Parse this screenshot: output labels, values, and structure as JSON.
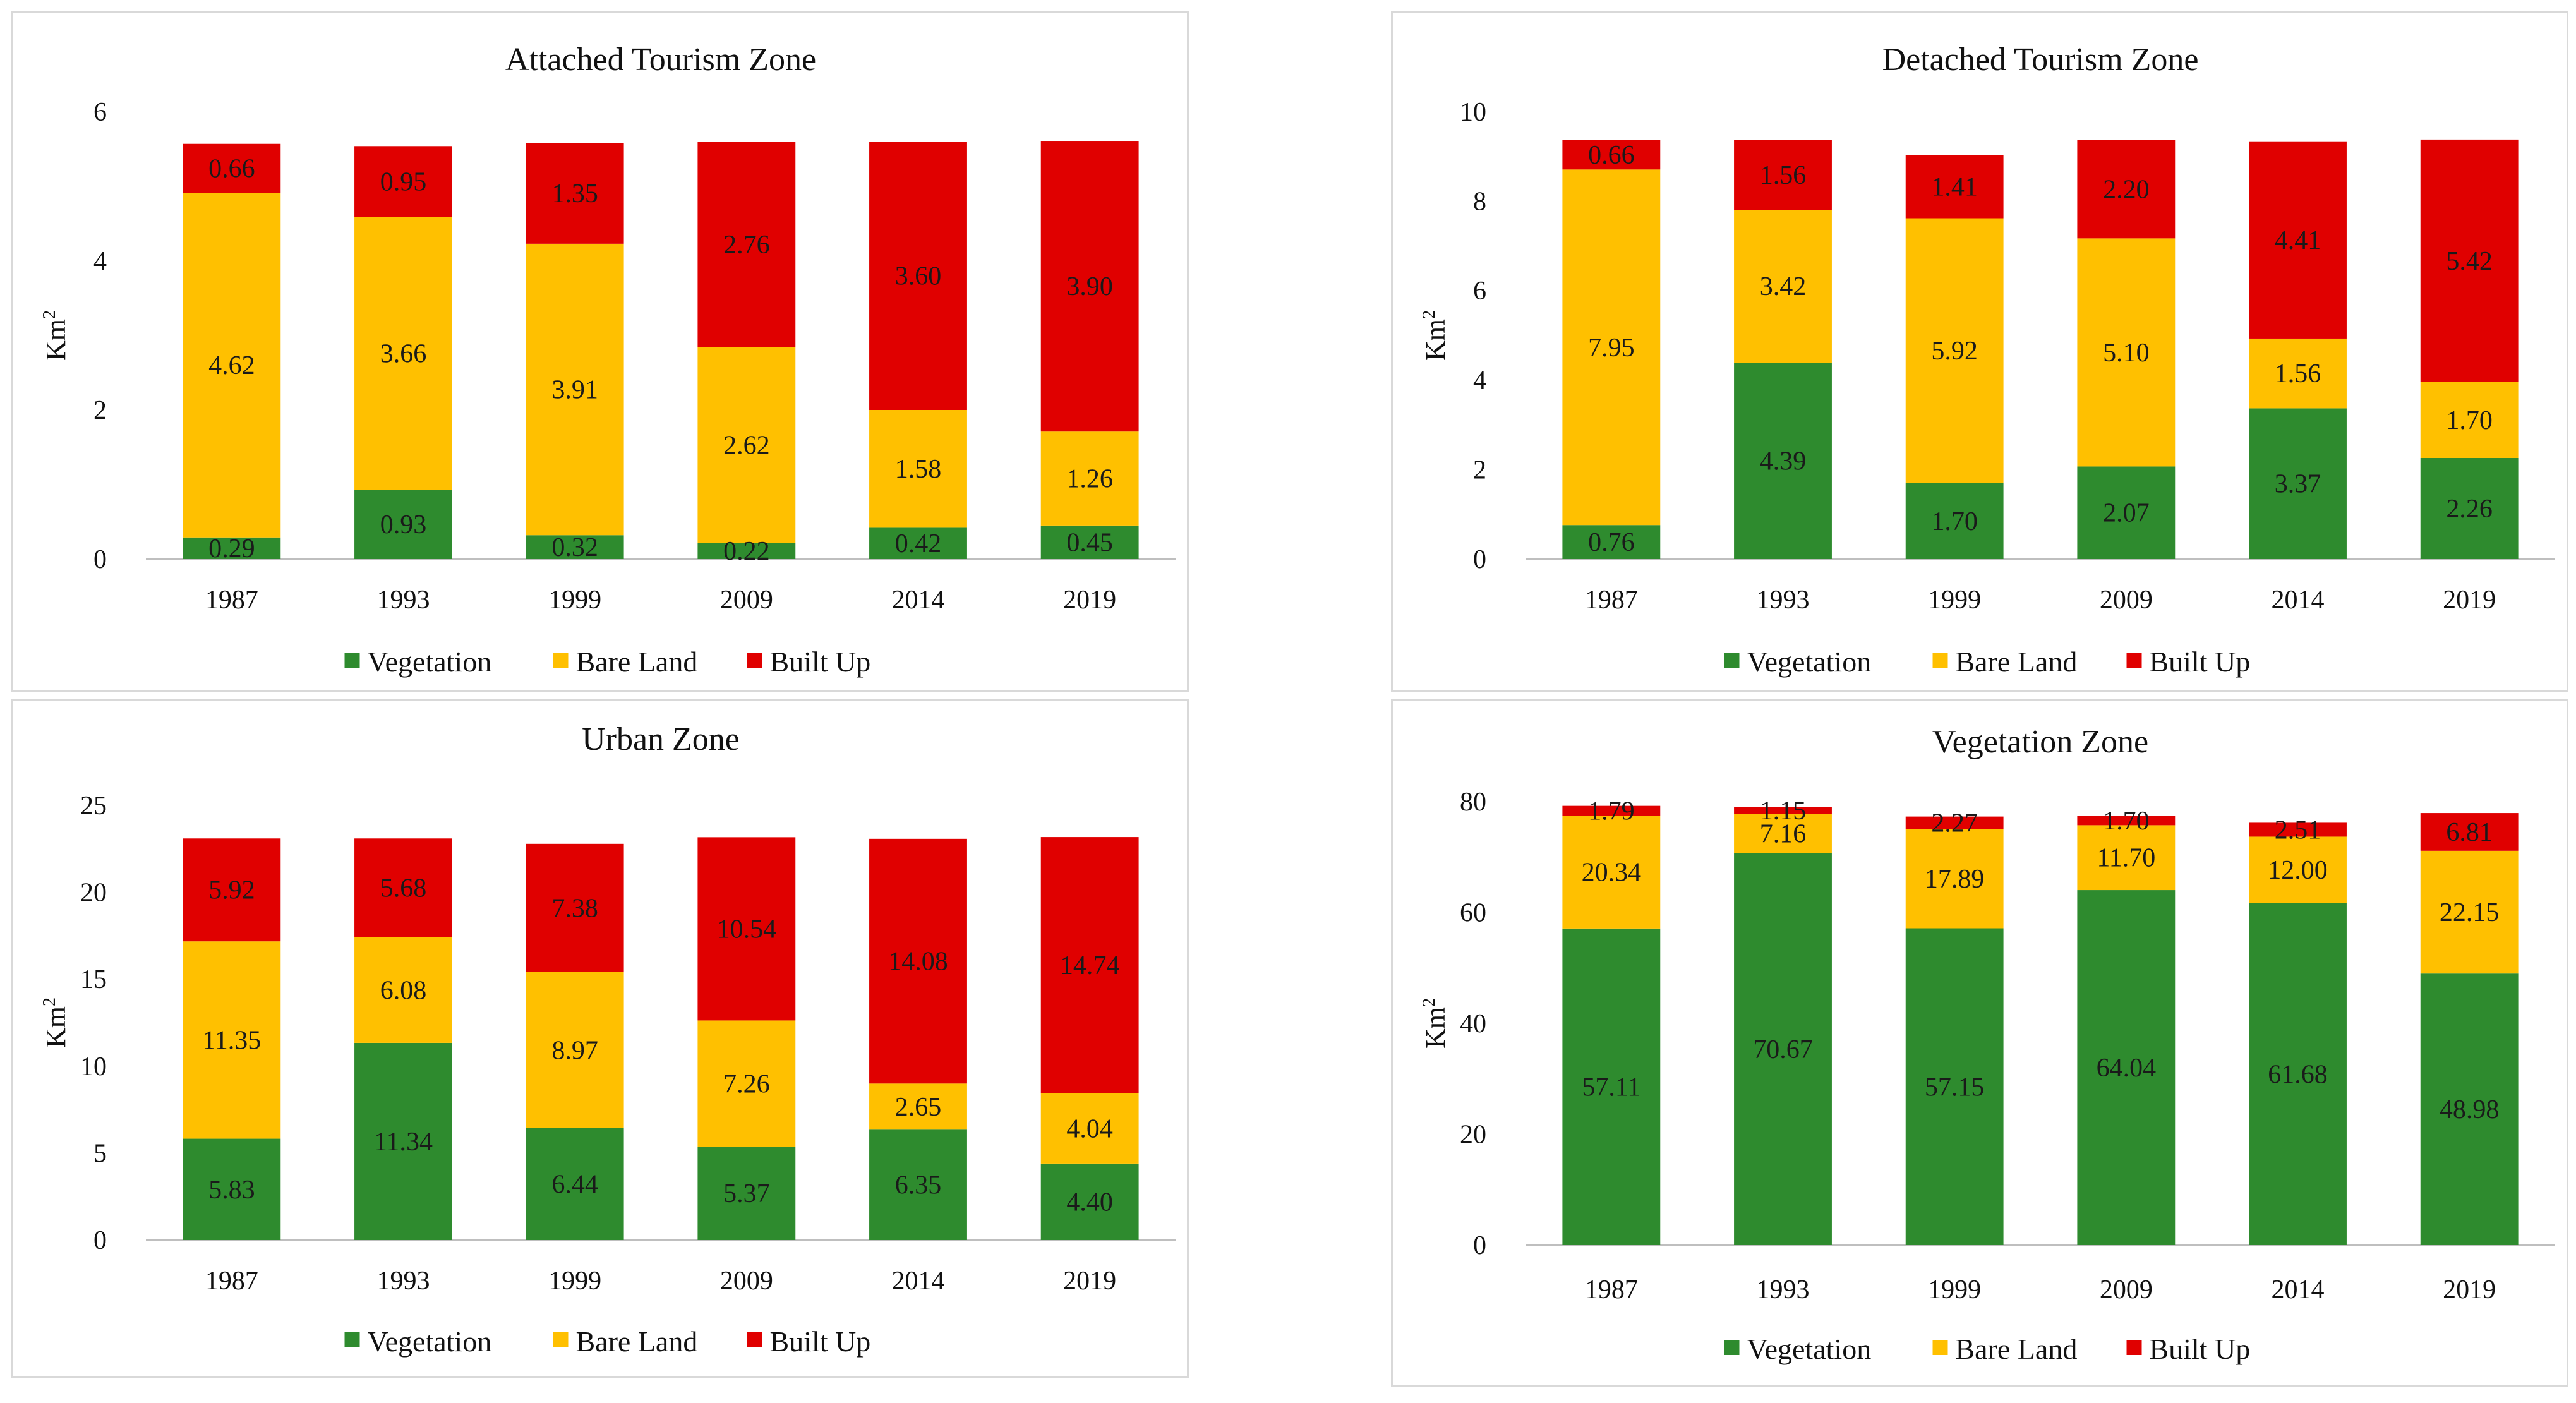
{
  "colors": {
    "Vegetation": "#2e8b2e",
    "Bare Land": "#ffc000",
    "Built Up": "#e00000"
  },
  "chart_data": [
    {
      "type": "bar",
      "stacked": true,
      "title": "Attached Tourism Zone",
      "ylabel": "Km",
      "ylabel_sup": "2",
      "xlabel": "",
      "ylim": [
        0,
        6
      ],
      "yticks": [
        0,
        2,
        4,
        6
      ],
      "categories": [
        "1987",
        "1993",
        "1999",
        "2009",
        "2014",
        "2019"
      ],
      "series": [
        {
          "name": "Vegetation",
          "values": [
            0.29,
            0.93,
            0.32,
            0.22,
            0.42,
            0.45
          ],
          "labels": [
            "0.29",
            "0.93",
            "0.32",
            "0.22",
            "0.42",
            "0.45"
          ]
        },
        {
          "name": "Bare Land",
          "values": [
            4.62,
            3.66,
            3.91,
            2.62,
            1.58,
            1.26
          ],
          "labels": [
            "4.62",
            "3.66",
            "3.91",
            "2.62",
            "1.58",
            "1.26"
          ]
        },
        {
          "name": "Built Up",
          "values": [
            0.66,
            0.95,
            1.35,
            2.76,
            3.6,
            3.9
          ],
          "labels": [
            "0.66",
            "0.95",
            "1.35",
            "2.76",
            "3.60",
            "3.90"
          ]
        }
      ],
      "legend": "bottom"
    },
    {
      "type": "bar",
      "stacked": true,
      "title": "Detached Tourism Zone",
      "ylabel": "Km",
      "ylabel_sup": "2",
      "xlabel": "",
      "ylim": [
        0,
        10
      ],
      "yticks": [
        0,
        2,
        4,
        6,
        8,
        10
      ],
      "categories": [
        "1987",
        "1993",
        "1999",
        "2009",
        "2014",
        "2019"
      ],
      "series": [
        {
          "name": "Vegetation",
          "values": [
            0.76,
            4.39,
            1.7,
            2.07,
            3.37,
            2.26
          ],
          "labels": [
            "0.76",
            "4.39",
            "1.70",
            "2.07",
            "3.37",
            "2.26"
          ]
        },
        {
          "name": "Bare Land",
          "values": [
            7.95,
            3.42,
            5.92,
            5.1,
            1.56,
            1.7
          ],
          "labels": [
            "7.95",
            "3.42",
            "5.92",
            "5.10",
            "1.56",
            "1.70"
          ]
        },
        {
          "name": "Built Up",
          "values": [
            0.66,
            1.56,
            1.41,
            2.2,
            4.41,
            5.42
          ],
          "labels": [
            "0.66",
            "1.56",
            "1.41",
            "2.20",
            "4.41",
            "5.42"
          ]
        }
      ],
      "legend": "bottom"
    },
    {
      "type": "bar",
      "stacked": true,
      "title": "Urban Zone",
      "ylabel": "Km",
      "ylabel_sup": "2",
      "xlabel": "",
      "ylim": [
        0,
        25
      ],
      "yticks": [
        0,
        5,
        10,
        15,
        20,
        25
      ],
      "categories": [
        "1987",
        "1993",
        "1999",
        "2009",
        "2014",
        "2019"
      ],
      "series": [
        {
          "name": "Vegetation",
          "values": [
            5.83,
            11.34,
            6.44,
            5.37,
            6.35,
            4.4
          ],
          "labels": [
            "5.83",
            "11.34",
            "6.44",
            "5.37",
            "6.35",
            "4.40"
          ]
        },
        {
          "name": "Bare Land",
          "values": [
            11.35,
            6.08,
            8.97,
            7.26,
            2.65,
            4.04
          ],
          "labels": [
            "11.35",
            "6.08",
            "8.97",
            "7.26",
            "2.65",
            "4.04"
          ]
        },
        {
          "name": "Built Up",
          "values": [
            5.92,
            5.68,
            7.38,
            10.54,
            14.08,
            14.74
          ],
          "labels": [
            "5.92",
            "5.68",
            "7.38",
            "10.54",
            "14.08",
            "14.74"
          ]
        }
      ],
      "legend": "bottom"
    },
    {
      "type": "bar",
      "stacked": true,
      "title": "Vegetation Zone",
      "ylabel": "Km",
      "ylabel_sup": "2",
      "xlabel": "",
      "ylim": [
        0,
        80
      ],
      "yticks": [
        0,
        20,
        40,
        60,
        80
      ],
      "categories": [
        "1987",
        "1993",
        "1999",
        "2009",
        "2014",
        "2019"
      ],
      "series": [
        {
          "name": "Vegetation",
          "values": [
            57.11,
            70.67,
            57.15,
            64.04,
            61.68,
            48.98
          ],
          "labels": [
            "57.11",
            "70.67",
            "57.15",
            "64.04",
            "61.68",
            "48.98"
          ]
        },
        {
          "name": "Bare Land",
          "values": [
            20.34,
            7.16,
            17.89,
            11.7,
            12.0,
            22.15
          ],
          "labels": [
            "20.34",
            "7.16",
            "17.89",
            "11.70",
            "12.00",
            "22.15"
          ]
        },
        {
          "name": "Built Up",
          "values": [
            1.79,
            1.15,
            2.27,
            1.7,
            2.51,
            6.81
          ],
          "labels": [
            "1.79",
            "1.15",
            "2.27",
            "1.70",
            "2.51",
            "6.81"
          ]
        }
      ],
      "legend": "bottom"
    }
  ]
}
